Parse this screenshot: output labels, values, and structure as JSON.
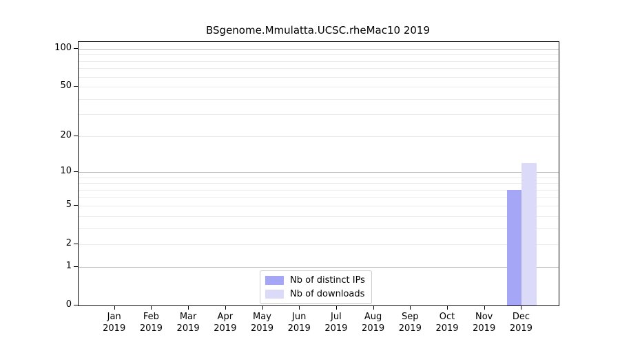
{
  "figure": {
    "title": "BSgenome.Mmulatta.UCSC.rheMac10 2019"
  },
  "chart_data": {
    "type": "bar",
    "title": "BSgenome.Mmulatta.UCSC.rheMac10 2019",
    "xlabel": "",
    "ylabel": "",
    "categories": [
      "Jan",
      "Feb",
      "Mar",
      "Apr",
      "May",
      "Jun",
      "Jul",
      "Aug",
      "Sep",
      "Oct",
      "Nov",
      "Dec"
    ],
    "category_sub_label": "2019",
    "series": [
      {
        "name": "Nb of distinct IPs",
        "color": "#a6a6f7",
        "values": [
          0,
          0,
          0,
          0,
          0,
          0,
          0,
          0,
          0,
          0,
          0,
          7
        ]
      },
      {
        "name": "Nb of downloads",
        "color": "#dbdbf9",
        "values": [
          0,
          0,
          0,
          0,
          0,
          0,
          0,
          0,
          0,
          0,
          0,
          12
        ]
      }
    ],
    "yscale": "log(1+x)",
    "ylim": [
      0,
      100
    ],
    "y_tick_values": [
      100,
      50,
      20,
      10,
      5,
      2,
      1,
      0
    ],
    "y_major_gridlines": [
      1,
      10,
      100
    ],
    "y_minor_gridlines": [
      2,
      3,
      4,
      5,
      6,
      7,
      8,
      9,
      20,
      30,
      40,
      50,
      60,
      70,
      80,
      90
    ],
    "grid": true,
    "legend_position": "lower center",
    "colors": {
      "axis": "#000000",
      "major_grid": "#bababa",
      "minor_grid": "#ebebeb",
      "legend_border": "#cccccc"
    }
  }
}
